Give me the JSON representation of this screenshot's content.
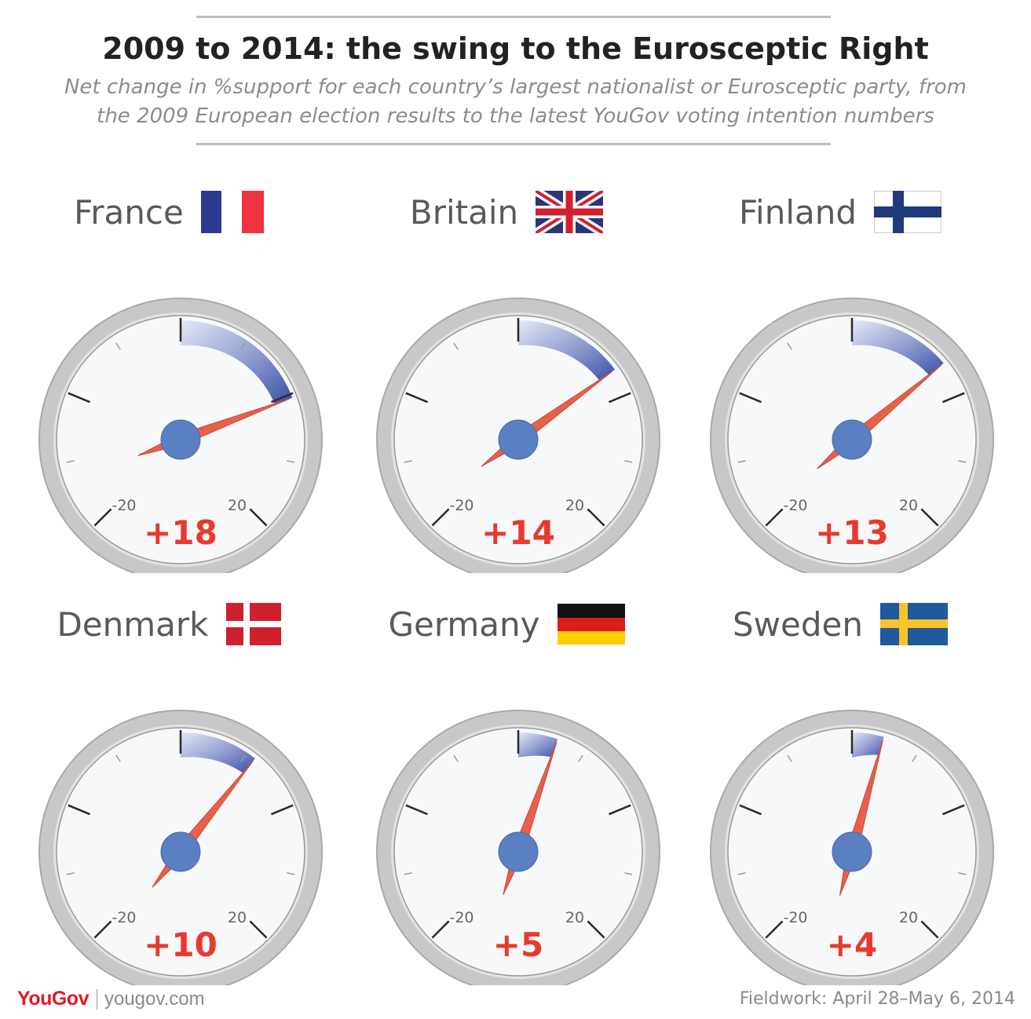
{
  "header": {
    "title": "2009 to 2014: the swing to the Eurosceptic Right",
    "subtitle_line1": "Net change in %support for each country’s largest nationalist or Eurosceptic party, from",
    "subtitle_line2": "the 2009 European election results to the latest YouGov voting intention numbers"
  },
  "colors": {
    "needle": "#e8604a",
    "hub": "#5a7fc2",
    "arc": "#3a4fa6",
    "value_text": "#e8392c",
    "bezel": "#c8c8c8",
    "face": "#f7f8fa"
  },
  "chart_data": {
    "type": "gauge",
    "gauge_range": [
      -35,
      35
    ],
    "tick_labels": [
      "-20",
      "20"
    ],
    "panels": [
      {
        "country": "France",
        "flag": "france-flag",
        "value": 18,
        "label": "+18"
      },
      {
        "country": "Britain",
        "flag": "uk-flag",
        "value": 14,
        "label": "+14"
      },
      {
        "country": "Finland",
        "flag": "finland-flag",
        "value": 13,
        "label": "+13"
      },
      {
        "country": "Denmark",
        "flag": "denmark-flag",
        "value": 10,
        "label": "+10"
      },
      {
        "country": "Germany",
        "flag": "germany-flag",
        "value": 5,
        "label": "+5"
      },
      {
        "country": "Sweden",
        "flag": "sweden-flag",
        "value": 4,
        "label": "+4"
      }
    ]
  },
  "footer": {
    "brand": "YouGov",
    "site": "yougov.com",
    "fieldwork": "Fieldwork: April 28–May 6, 2014"
  }
}
